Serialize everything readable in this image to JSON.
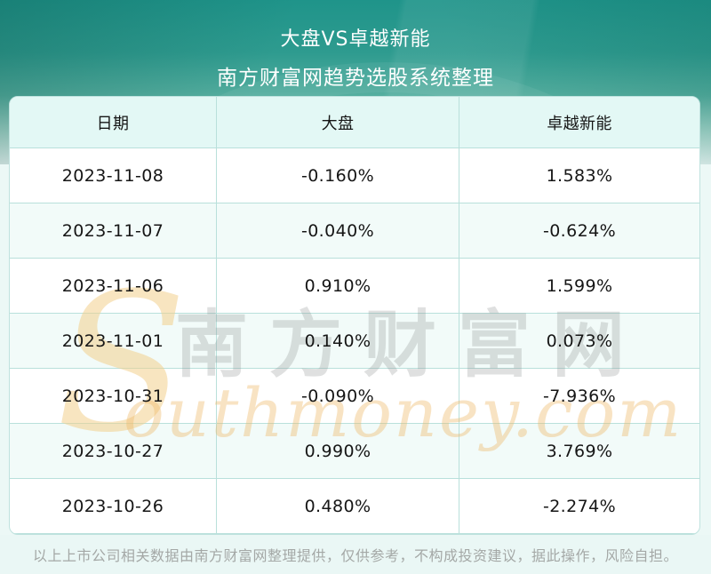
{
  "banner": {
    "title": "大盘VS卓越新能",
    "subtitle": "南方财富网趋势选股系统整理"
  },
  "table": {
    "columns": [
      "日期",
      "大盘",
      "卓越新能"
    ],
    "rows": [
      [
        "2023-11-08",
        "-0.160%",
        "1.583%"
      ],
      [
        "2023-11-07",
        "-0.040%",
        "-0.624%"
      ],
      [
        "2023-11-06",
        "0.910%",
        "1.599%"
      ],
      [
        "2023-11-01",
        "0.140%",
        "0.073%"
      ],
      [
        "2023-10-31",
        "-0.090%",
        "-7.936%"
      ],
      [
        "2023-10-27",
        "0.990%",
        "3.769%"
      ],
      [
        "2023-10-26",
        "0.480%",
        "-2.274%"
      ]
    ]
  },
  "watermark": {
    "swash": "S",
    "cn": "南方财富网",
    "en": "outhmoney.com"
  },
  "footer": {
    "disclaimer": "以上上市公司相关数据由南方财富网整理提供，仅供参考，不构成投资建议，据此操作，风险自担。"
  },
  "colors": {
    "banner_teal_top": "#1f948a",
    "banner_teal_mid": "#54ae9f",
    "page_bg": "#ecf8f6",
    "header_row_bg": "#e3f8f5",
    "alt_row_bg": "#f2fbf9",
    "row_bg": "#ffffff",
    "table_border": "#b9e0db",
    "text": "#161616",
    "footer_text": "#a4a8a6",
    "watermark_gray": "#8c908e",
    "watermark_orange": "#eeba68"
  },
  "chart_data": {
    "type": "table",
    "title": "大盘VS卓越新能",
    "subtitle": "南方财富网趋势选股系统整理",
    "columns": [
      "日期",
      "大盘",
      "卓越新能"
    ],
    "categories": [
      "2023-11-08",
      "2023-11-07",
      "2023-11-06",
      "2023-11-01",
      "2023-10-31",
      "2023-10-27",
      "2023-10-26"
    ],
    "series": [
      {
        "name": "大盘",
        "unit": "%",
        "values": [
          -0.16,
          -0.04,
          0.91,
          0.14,
          -0.09,
          0.99,
          0.48
        ]
      },
      {
        "name": "卓越新能",
        "unit": "%",
        "values": [
          1.583,
          -0.624,
          1.599,
          0.073,
          -7.936,
          3.769,
          -2.274
        ]
      }
    ]
  }
}
